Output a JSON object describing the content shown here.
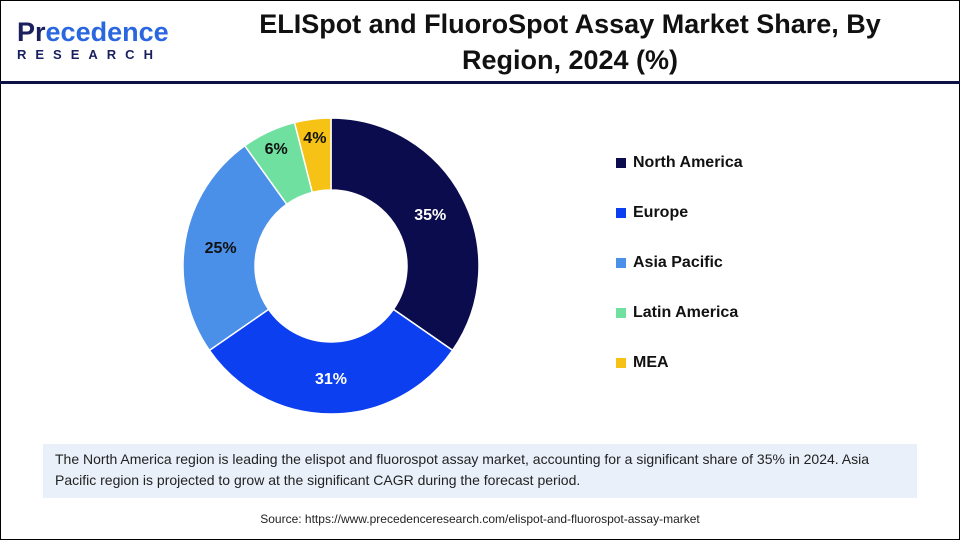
{
  "logo": {
    "line1_a": "Pr",
    "line1_b": "ecedence",
    "line2": "RESEARCH"
  },
  "title": "ELISpot and FluoroSpot Assay Market Share, By Region, 2024 (%)",
  "chart_data": {
    "type": "pie",
    "donut": true,
    "title": "ELISpot and FluoroSpot Assay Market Share, By Region, 2024 (%)",
    "categories": [
      "North America",
      "Europe",
      "Asia Pacific",
      "Latin America",
      "MEA"
    ],
    "values": [
      35,
      31,
      25,
      6,
      4
    ],
    "labels": [
      "35%",
      "31%",
      "25%",
      "6%",
      "4%"
    ],
    "colors": [
      "#0b0c4d",
      "#0b3ff0",
      "#4a8fe8",
      "#6fe0a0",
      "#f6c215"
    ],
    "legend": "right"
  },
  "caption": "The North America region is leading the elispot and fluorospot assay market, accounting for a significant share of 35% in 2024. Asia Pacific region is projected to grow at the significant CAGR during the forecast period.",
  "source": "Source: https://www.precedenceresearch.com/elispot-and-fluorospot-assay-market"
}
